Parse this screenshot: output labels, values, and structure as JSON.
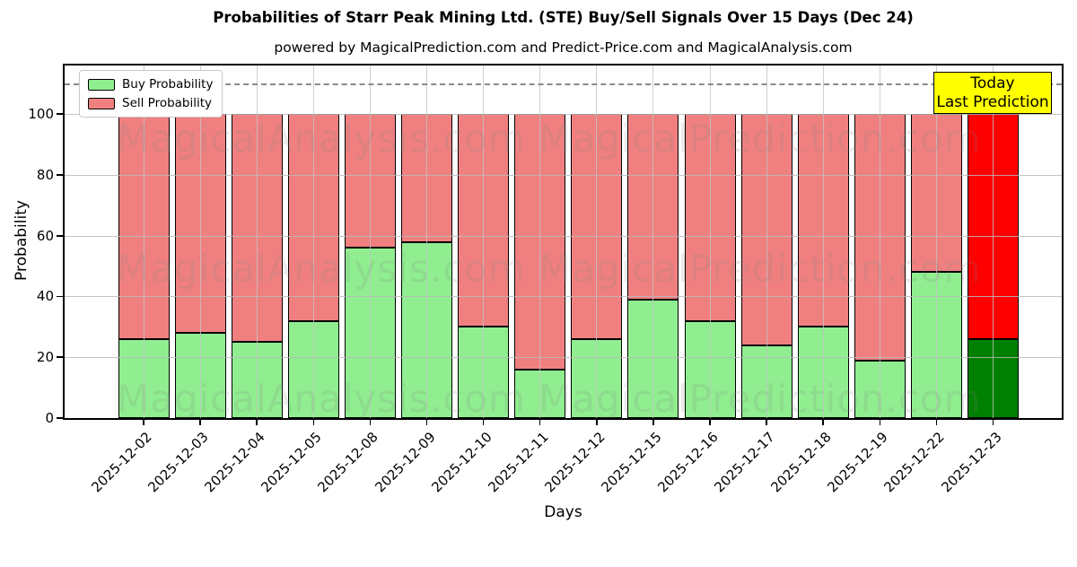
{
  "title": "Probabilities of Starr Peak Mining Ltd. (STE) Buy/Sell Signals Over 15 Days (Dec 24)",
  "subtitle": "powered by MagicalPrediction.com and Predict-Price.com and MagicalAnalysis.com",
  "today_box": {
    "line1": "Today",
    "line2": "Last Prediction",
    "bg_color": "#ffff00"
  },
  "watermark": {
    "left_text": "MagicalAnalysis.com",
    "right_text": "MagicalPrediction.com"
  },
  "legend": {
    "items": [
      {
        "label": "Buy Probability",
        "color": "#90ee90"
      },
      {
        "label": "Sell Probability",
        "color": "#f08080"
      }
    ]
  },
  "colors": {
    "buy": "#90ee90",
    "sell": "#f08080",
    "today_buy": "#008000",
    "today_sell": "#ff0000",
    "grid": "#bbbbbb",
    "dashed_line": "#8a8a8a",
    "bar_edge": "#000000"
  },
  "chart_data": {
    "type": "bar",
    "stacked": true,
    "title": "Probabilities of Starr Peak Mining Ltd. (STE) Buy/Sell Signals Over 15 Days (Dec 24)",
    "xlabel": "Days",
    "ylabel": "Probability",
    "categories": [
      "2025-12-02",
      "2025-12-03",
      "2025-12-04",
      "2025-12-05",
      "2025-12-08",
      "2025-12-09",
      "2025-12-10",
      "2025-12-11",
      "2025-12-12",
      "2025-12-15",
      "2025-12-16",
      "2025-12-17",
      "2025-12-18",
      "2025-12-19",
      "2025-12-22",
      "2025-12-23"
    ],
    "series": [
      {
        "name": "Buy Probability",
        "values": [
          26,
          28,
          25,
          32,
          56,
          58,
          30,
          16,
          26,
          39,
          32,
          24,
          30,
          19,
          48,
          26
        ]
      },
      {
        "name": "Sell Probability",
        "values": [
          74,
          72,
          75,
          68,
          44,
          42,
          70,
          84,
          74,
          61,
          68,
          76,
          70,
          81,
          52,
          74
        ]
      }
    ],
    "yticks": [
      0,
      20,
      40,
      60,
      80,
      100
    ],
    "ylim": [
      0,
      116
    ],
    "dashed_line_y": 110,
    "grid": true,
    "legend_position": "upper left",
    "last_bar_highlighted": true,
    "bar_total": 100
  }
}
